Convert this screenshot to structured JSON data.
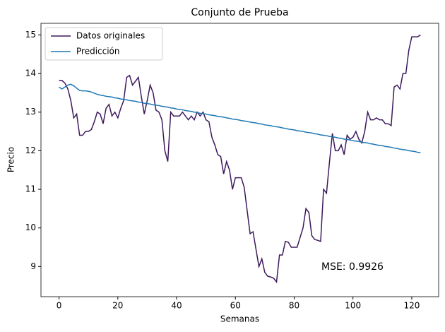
{
  "chart_data": {
    "type": "line",
    "title": "Conjunto de Prueba",
    "x_label": "Semanas",
    "y_label": "Precio",
    "x": [
      0,
      1,
      2,
      3,
      4,
      5,
      6,
      7,
      8,
      9,
      10,
      11,
      12,
      13,
      14,
      15,
      16,
      17,
      18,
      19,
      20,
      21,
      22,
      23,
      24,
      25,
      26,
      27,
      28,
      29,
      30,
      31,
      32,
      33,
      34,
      35,
      36,
      37,
      38,
      39,
      40,
      41,
      42,
      43,
      44,
      45,
      46,
      47,
      48,
      49,
      50,
      51,
      52,
      53,
      54,
      55,
      56,
      57,
      58,
      59,
      60,
      61,
      62,
      63,
      64,
      65,
      66,
      67,
      68,
      69,
      70,
      71,
      72,
      73,
      74,
      75,
      76,
      77,
      78,
      79,
      80,
      81,
      82,
      83,
      84,
      85,
      86,
      87,
      88,
      89,
      90,
      91,
      92,
      93,
      94,
      95,
      96,
      97,
      98,
      99,
      100,
      101,
      102,
      103,
      104,
      105,
      106,
      107,
      108,
      109,
      110,
      111,
      112,
      113,
      114,
      115,
      116,
      117,
      118,
      119,
      120,
      121,
      122,
      123
    ],
    "series": [
      {
        "name": "Datos originales",
        "color": "#3d1a5c",
        "values": [
          13.82,
          13.82,
          13.75,
          13.6,
          13.3,
          12.85,
          12.95,
          12.4,
          12.4,
          12.5,
          12.5,
          12.55,
          12.75,
          13.0,
          12.95,
          12.7,
          13.1,
          13.2,
          12.9,
          13.0,
          12.85,
          13.1,
          13.3,
          13.9,
          13.95,
          13.7,
          13.8,
          13.9,
          13.4,
          12.95,
          13.3,
          13.7,
          13.5,
          13.05,
          13.0,
          12.8,
          12.0,
          11.72,
          13.0,
          12.9,
          12.9,
          12.9,
          13.0,
          12.9,
          12.8,
          12.9,
          12.8,
          13.0,
          12.9,
          13.0,
          12.8,
          12.75,
          12.35,
          12.15,
          11.9,
          11.85,
          11.4,
          11.72,
          11.5,
          11.0,
          11.3,
          11.3,
          11.3,
          11.05,
          10.45,
          9.85,
          9.9,
          9.45,
          9.0,
          9.2,
          8.85,
          8.75,
          8.73,
          8.7,
          8.6,
          9.3,
          9.3,
          9.65,
          9.63,
          9.5,
          9.5,
          9.5,
          9.75,
          10.0,
          10.5,
          10.4,
          9.8,
          9.7,
          9.68,
          9.65,
          11.0,
          10.9,
          11.7,
          12.45,
          12.0,
          12.0,
          12.15,
          11.9,
          12.4,
          12.3,
          12.35,
          12.5,
          12.3,
          12.2,
          12.5,
          13.0,
          12.8,
          12.8,
          12.85,
          12.8,
          12.8,
          12.7,
          12.7,
          12.65,
          13.65,
          13.7,
          13.6,
          14.0,
          14.0,
          14.6,
          14.95,
          14.95,
          14.95,
          15.0
        ]
      },
      {
        "name": "Predicción",
        "color": "#1f77b4",
        "values": [
          13.65,
          13.6,
          13.65,
          13.7,
          13.72,
          13.68,
          13.62,
          13.56,
          13.55,
          13.55,
          13.54,
          13.52,
          13.49,
          13.46,
          13.44,
          13.43,
          13.41,
          13.4,
          13.39,
          13.37,
          13.36,
          13.34,
          13.33,
          13.32,
          13.3,
          13.29,
          13.28,
          13.26,
          13.25,
          13.23,
          13.22,
          13.21,
          13.19,
          13.18,
          13.17,
          13.15,
          13.14,
          13.13,
          13.11,
          13.1,
          13.08,
          13.07,
          13.06,
          13.04,
          13.03,
          13.02,
          13.0,
          12.99,
          12.97,
          12.96,
          12.95,
          12.93,
          12.92,
          12.91,
          12.89,
          12.88,
          12.87,
          12.85,
          12.84,
          12.82,
          12.81,
          12.8,
          12.78,
          12.77,
          12.76,
          12.74,
          12.73,
          12.72,
          12.7,
          12.69,
          12.67,
          12.66,
          12.65,
          12.63,
          12.62,
          12.61,
          12.59,
          12.58,
          12.56,
          12.55,
          12.54,
          12.52,
          12.51,
          12.5,
          12.48,
          12.47,
          12.46,
          12.44,
          12.43,
          12.41,
          12.4,
          12.39,
          12.37,
          12.36,
          12.35,
          12.33,
          12.32,
          12.3,
          12.29,
          12.28,
          12.26,
          12.25,
          12.24,
          12.22,
          12.21,
          12.2,
          12.18,
          12.17,
          12.15,
          12.14,
          12.13,
          12.11,
          12.1,
          12.09,
          12.07,
          12.06,
          12.04,
          12.03,
          12.02,
          12.0,
          11.99,
          11.98,
          11.96,
          11.95
        ]
      }
    ],
    "xlim": [
      -6.15,
      129.15
    ],
    "xticks": [
      0,
      20,
      40,
      60,
      80,
      100,
      120
    ],
    "ylim": [
      8.22,
      15.3
    ],
    "yticks": [
      9,
      10,
      11,
      12,
      13,
      14,
      15
    ],
    "legend": "upper left",
    "annotation": "MSE: 0.9926"
  }
}
